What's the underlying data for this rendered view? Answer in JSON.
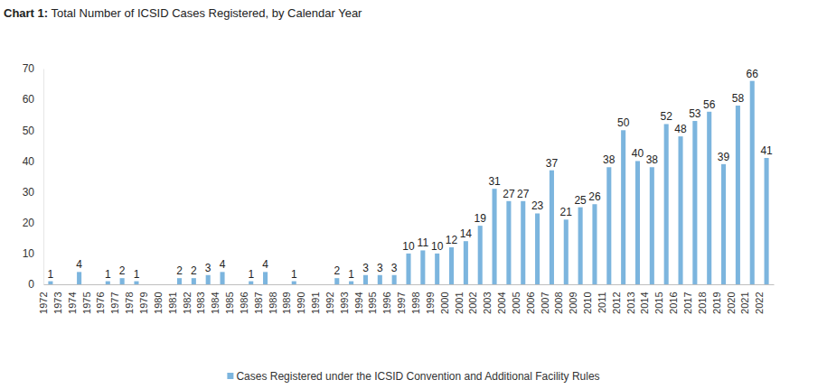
{
  "chart_data": {
    "type": "bar",
    "title": "Chart 1: Total Number of ICSID Cases Registered, by Calendar Year",
    "categories": [
      "1972",
      "1973",
      "1974",
      "1975",
      "1976",
      "1977",
      "1978",
      "1979",
      "1980",
      "1981",
      "1982",
      "1983",
      "1984",
      "1985",
      "1986",
      "1987",
      "1988",
      "1989",
      "1990",
      "1991",
      "1992",
      "1993",
      "1994",
      "1995",
      "1996",
      "1997",
      "1998",
      "1999",
      "2000",
      "2001",
      "2002",
      "2003",
      "2004",
      "2005",
      "2006",
      "2007",
      "2008",
      "2009",
      "2010",
      "2011",
      "2012",
      "2013",
      "2014",
      "2015",
      "2016",
      "2017",
      "2018",
      "2019",
      "2020",
      "2021",
      "2022"
    ],
    "series": [
      {
        "name": "Cases Registered under the ICSID Convention and Additional Facility Rules",
        "color": "#7cb5de",
        "values": [
          1,
          null,
          4,
          null,
          1,
          2,
          1,
          null,
          null,
          2,
          2,
          3,
          4,
          null,
          1,
          4,
          null,
          1,
          null,
          null,
          2,
          1,
          3,
          3,
          3,
          10,
          11,
          10,
          12,
          14,
          19,
          31,
          27,
          27,
          23,
          37,
          21,
          25,
          26,
          38,
          50,
          40,
          38,
          52,
          48,
          53,
          56,
          39,
          58,
          66,
          41
        ]
      }
    ],
    "ylim": [
      0,
      70
    ],
    "yticks": [
      0,
      10,
      20,
      30,
      40,
      50,
      60,
      70
    ],
    "grid": false,
    "legend": "bottom",
    "data_labels": true
  }
}
